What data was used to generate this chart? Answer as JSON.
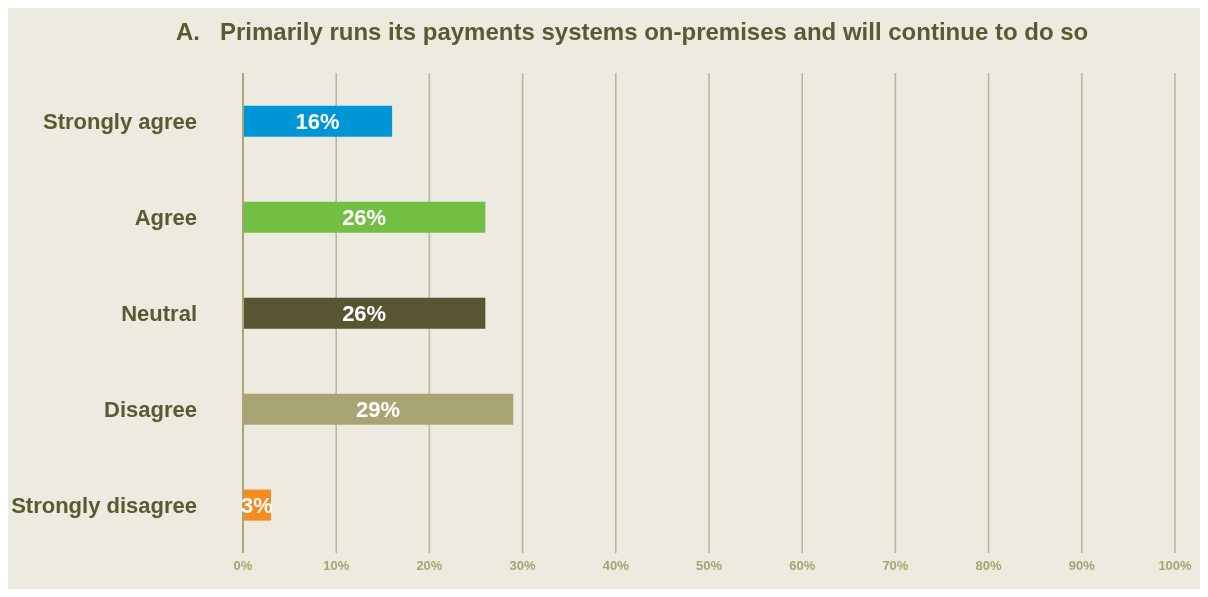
{
  "chart_data": {
    "type": "bar",
    "orientation": "horizontal",
    "title": "A.   Primarily runs its payments systems on-premises and will continue to do so",
    "categories": [
      "Strongly agree",
      "Agree",
      "Neutral",
      "Disagree",
      "Strongly disagree"
    ],
    "values": [
      16,
      26,
      26,
      29,
      3
    ],
    "colors": [
      "#0096d6",
      "#72bf44",
      "#575532",
      "#a8a473",
      "#f68b1f"
    ],
    "value_labels": [
      "16%",
      "26%",
      "26%",
      "29%",
      "3%"
    ],
    "xlim": [
      0,
      100
    ],
    "xticks": [
      {
        "value": 0,
        "label": "0%"
      },
      {
        "value": 10,
        "label": "10%"
      },
      {
        "value": 20,
        "label": "20%"
      },
      {
        "value": 30,
        "label": "30%"
      },
      {
        "value": 40,
        "label": "40%"
      },
      {
        "value": 50,
        "label": "50%"
      },
      {
        "value": 60,
        "label": "60%"
      },
      {
        "value": 70,
        "label": "70%"
      },
      {
        "value": 80,
        "label": "80%"
      },
      {
        "value": 90,
        "label": "90%"
      },
      {
        "value": 100,
        "label": "100%"
      }
    ],
    "grid": "x"
  }
}
